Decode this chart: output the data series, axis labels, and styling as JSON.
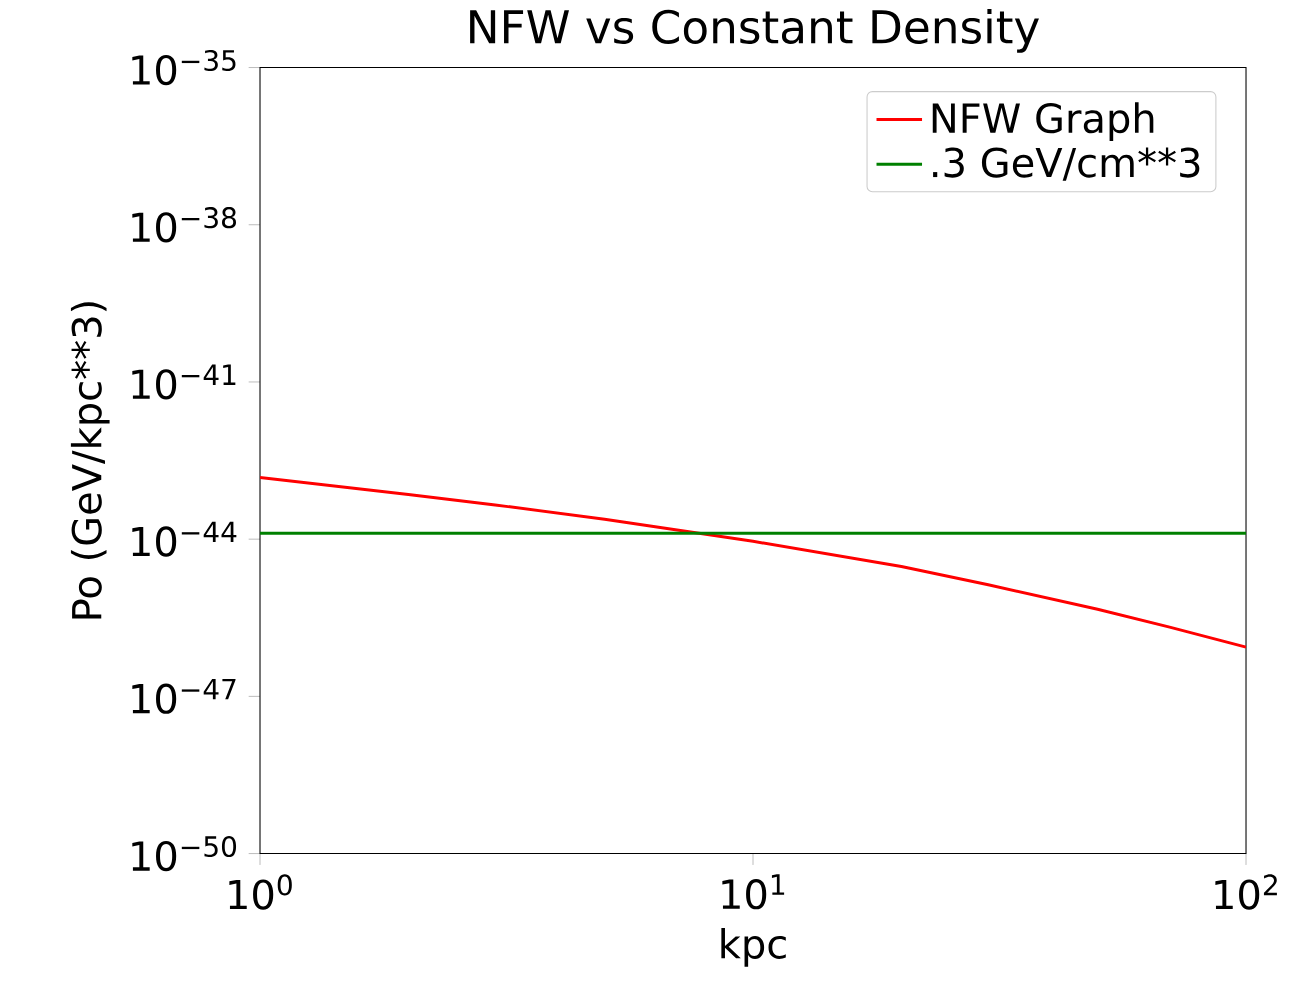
{
  "chart_data": {
    "type": "line",
    "title": "NFW vs Constant Density",
    "xlabel": "kpc",
    "ylabel": "Po (GeV/kpc**3)",
    "log": "xy",
    "legend": "top right",
    "xlim": [
      1,
      100
    ],
    "ylim": [
      1e-50,
      1e-35
    ],
    "xticks": [
      {
        "value": 1,
        "label": "10$^{0}$"
      },
      {
        "value": 10,
        "label": "10$^{1}$"
      },
      {
        "value": 100,
        "label": "10$^{2}$"
      }
    ],
    "yticks": [
      {
        "value": 1e-50,
        "label": "10$^{−50}$"
      },
      {
        "value": 1e-47,
        "label": "10$^{−47}$"
      },
      {
        "value": 1e-44,
        "label": "10$^{−44}$"
      },
      {
        "value": 1e-41,
        "label": "10$^{−41}$"
      },
      {
        "value": 1e-38,
        "label": "10$^{−38}$"
      },
      {
        "value": 1e-35,
        "label": "10$^{−35}$"
      }
    ],
    "series": [
      {
        "name": "NFW Graph",
        "color": "#ff0000",
        "x": [
          1,
          2,
          3,
          5,
          10,
          20,
          30,
          50,
          70,
          100
        ],
        "values": [
          1.5e-43,
          7.1e-44,
          4.5e-44,
          2.4e-44,
          9.1e-45,
          3e-45,
          1.35e-45,
          4.6e-46,
          2.1e-46,
          8.7e-47
        ]
      },
      {
        "name": ".3 GeV/cm**3",
        "color": "#008000",
        "x": [
          1,
          100
        ],
        "values": [
          1.3e-44,
          1.3e-44
        ]
      }
    ]
  }
}
